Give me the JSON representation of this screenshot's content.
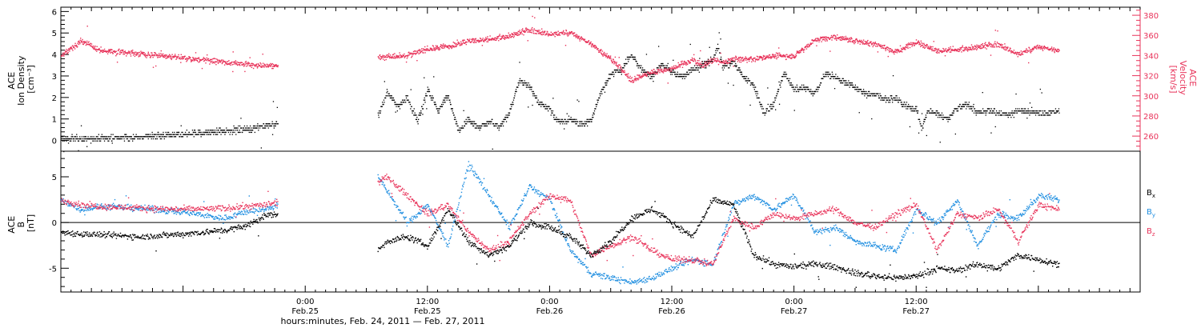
{
  "chart_data": [
    {
      "type": "scatter",
      "panel": "top",
      "left_ylabel": [
        "ACE",
        "Ion Density",
        "[cm⁻³]"
      ],
      "right_ylabel": [
        "ACE",
        "Velocity",
        "[km/s]"
      ],
      "left_ylim": [
        -0.5,
        6.2
      ],
      "right_ylim": [
        245,
        388
      ],
      "left_yticks": [
        0,
        1,
        2,
        3,
        4,
        5,
        6
      ],
      "right_yticks": [
        260,
        280,
        300,
        320,
        340,
        360,
        380
      ],
      "colors": {
        "density": "#000000",
        "velocity": "#e8335a"
      },
      "data_gap_hours": [
        21.3,
        31.1
      ],
      "series": [
        {
          "key": "density",
          "axis": "left",
          "x": [
            0,
            4,
            8,
            12,
            16,
            19,
            21.2,
            21.3,
            31.2,
            32,
            33,
            34,
            35,
            36,
            37,
            38,
            39,
            40,
            41,
            42,
            43,
            44,
            45,
            46,
            47,
            48,
            48.5,
            49,
            50,
            51,
            52,
            53,
            54,
            55,
            56,
            57,
            58,
            59,
            60,
            61,
            62,
            63,
            64,
            64.5,
            65,
            66,
            67,
            68,
            69,
            70,
            71,
            72,
            73,
            74,
            75,
            76,
            77,
            78,
            79,
            80,
            81,
            82,
            83,
            84,
            84.5,
            85,
            86,
            87,
            88,
            89,
            90,
            91,
            92,
            93,
            94,
            95,
            96,
            97,
            98
          ],
          "y": [
            0.1,
            0.12,
            0.2,
            0.3,
            0.45,
            0.6,
            0.8,
            0.9,
            1.2,
            2.3,
            1.6,
            2.0,
            0.9,
            2.4,
            1.4,
            2.1,
            0.5,
            1.0,
            0.6,
            0.9,
            0.6,
            1.3,
            2.8,
            2.5,
            1.7,
            1.5,
            1.0,
            0.9,
            1.0,
            0.8,
            0.9,
            2.3,
            3.1,
            3.3,
            4.0,
            3.3,
            3.0,
            3.6,
            3.2,
            3.0,
            3.3,
            3.5,
            3.8,
            4.4,
            3.4,
            3.7,
            3.0,
            2.6,
            1.3,
            1.7,
            3.2,
            2.4,
            2.5,
            2.2,
            3.1,
            3.0,
            2.7,
            2.5,
            2.2,
            2.2,
            1.9,
            2.0,
            1.6,
            1.5,
            0.5,
            1.4,
            1.3,
            1.0,
            1.5,
            1.7,
            1.3,
            1.4,
            1.3,
            1.2,
            1.4,
            1.4,
            1.3,
            1.3,
            1.4
          ]
        },
        {
          "key": "velocity",
          "axis": "right",
          "x": [
            0,
            2,
            4,
            8,
            12,
            16,
            19,
            21.3,
            31.1,
            32,
            34,
            36,
            38,
            40,
            42,
            44,
            46,
            48,
            50,
            52,
            54,
            56,
            58,
            60,
            61,
            62,
            63,
            64,
            65,
            66,
            68,
            70,
            72,
            74,
            76,
            78,
            80,
            82,
            84,
            86,
            88,
            90,
            92,
            94,
            96,
            98
          ],
          "y": [
            340,
            355,
            345,
            342,
            338,
            334,
            331,
            330,
            339,
            339,
            341,
            347,
            350,
            355,
            356,
            360,
            366,
            362,
            363,
            352,
            337,
            316,
            324,
            327,
            332,
            336,
            331,
            336,
            333,
            337,
            337,
            340,
            340,
            356,
            359,
            355,
            352,
            344,
            354,
            345,
            346,
            349,
            352,
            342,
            349,
            345
          ]
        }
      ]
    },
    {
      "type": "scatter",
      "panel": "bottom",
      "ylabel": [
        "ACE",
        "B",
        "[nT]"
      ],
      "ylim": [
        -7.6,
        7.8
      ],
      "yticks": [
        -5,
        0,
        5
      ],
      "zero_line": true,
      "data_gap_hours": [
        21.3,
        31.1
      ],
      "xlabel": "hours:minutes, Feb. 24, 2011 — Feb. 27, 2011",
      "xlim": [
        0,
        106
      ],
      "xticks": [
        {
          "hour": 24,
          "top": "0:00",
          "bottom": "Feb.25"
        },
        {
          "hour": 36,
          "top": "12:00",
          "bottom": "Feb.25"
        },
        {
          "hour": 48,
          "top": "0:00",
          "bottom": "Feb.26"
        },
        {
          "hour": 60,
          "top": "12:00",
          "bottom": "Feb.26"
        },
        {
          "hour": 72,
          "top": "0:00",
          "bottom": "Feb.27"
        },
        {
          "hour": 84,
          "top": "12:00",
          "bottom": "Feb.27"
        }
      ],
      "legend": [
        {
          "label": "B",
          "sub": "x",
          "color": "#000000"
        },
        {
          "label": "B",
          "sub": "y",
          "color": "#1f8ee0"
        },
        {
          "label": "B",
          "sub": "z",
          "color": "#e8335a"
        }
      ],
      "series": [
        {
          "key": "Bx",
          "x": [
            0,
            2,
            4,
            8,
            12,
            16,
            18,
            20,
            21.3,
            31.1,
            32,
            34,
            36,
            38,
            40,
            42,
            44,
            46,
            48,
            50,
            52,
            54,
            56,
            58,
            60,
            62,
            64,
            66,
            68,
            70,
            72,
            74,
            76,
            78,
            80,
            82,
            84,
            86,
            88,
            90,
            92,
            94,
            96,
            98
          ],
          "y": [
            -1.0,
            -1.2,
            -1.3,
            -1.5,
            -1.2,
            -0.8,
            -0.4,
            0.8,
            1.0,
            -3.0,
            -2.0,
            -1.5,
            -2.5,
            1.5,
            -2.0,
            -3.5,
            -2.5,
            0.0,
            -0.5,
            -1.5,
            -3.5,
            -2.0,
            0.5,
            1.5,
            0.0,
            -1.5,
            2.5,
            2.0,
            -3.5,
            -4.5,
            -4.8,
            -4.5,
            -4.8,
            -5.5,
            -5.8,
            -6.0,
            -5.8,
            -5.0,
            -5.2,
            -4.5,
            -5.0,
            -3.5,
            -4.0,
            -4.5
          ]
        },
        {
          "key": "By",
          "x": [
            0,
            2,
            4,
            8,
            12,
            16,
            18,
            20,
            21.3,
            31.1,
            32,
            34,
            36,
            38,
            40,
            42,
            44,
            46,
            48,
            50,
            52,
            54,
            56,
            58,
            60,
            62,
            64,
            66,
            68,
            70,
            72,
            74,
            76,
            78,
            80,
            82,
            84,
            86,
            88,
            90,
            92,
            94,
            96,
            98
          ],
          "y": [
            2.5,
            1.5,
            1.8,
            1.6,
            1.2,
            0.5,
            1.2,
            1.5,
            2.0,
            5.0,
            3.5,
            0.0,
            2.0,
            -2.5,
            6.5,
            3.0,
            -0.5,
            4.0,
            2.5,
            -3.0,
            -5.5,
            -6.0,
            -6.5,
            -6.0,
            -5.0,
            -4.0,
            -4.5,
            2.0,
            3.0,
            1.5,
            3.0,
            -1.0,
            -0.5,
            -2.0,
            -2.5,
            -3.0,
            1.5,
            0.0,
            2.5,
            -2.5,
            1.0,
            0.5,
            3.0,
            2.5
          ]
        },
        {
          "key": "Bz",
          "x": [
            0,
            2,
            4,
            8,
            12,
            16,
            18,
            20,
            21.3,
            31.1,
            32,
            34,
            36,
            38,
            40,
            42,
            44,
            46,
            48,
            50,
            52,
            54,
            56,
            58,
            60,
            62,
            64,
            66,
            68,
            70,
            72,
            74,
            76,
            78,
            80,
            82,
            84,
            86,
            88,
            90,
            92,
            94,
            96,
            98
          ],
          "y": [
            2.5,
            2.0,
            1.8,
            1.6,
            1.5,
            1.6,
            1.8,
            2.0,
            2.2,
            4.5,
            5.0,
            3.0,
            1.0,
            2.0,
            -1.0,
            -3.0,
            -2.0,
            1.0,
            3.0,
            2.5,
            -3.5,
            -2.5,
            -1.5,
            -3.0,
            -4.0,
            -4.0,
            -4.5,
            0.5,
            -0.5,
            1.0,
            0.5,
            1.0,
            1.5,
            0.0,
            -0.5,
            1.0,
            2.0,
            -3.0,
            1.0,
            0.5,
            1.5,
            -2.0,
            2.0,
            1.5
          ]
        }
      ]
    }
  ]
}
